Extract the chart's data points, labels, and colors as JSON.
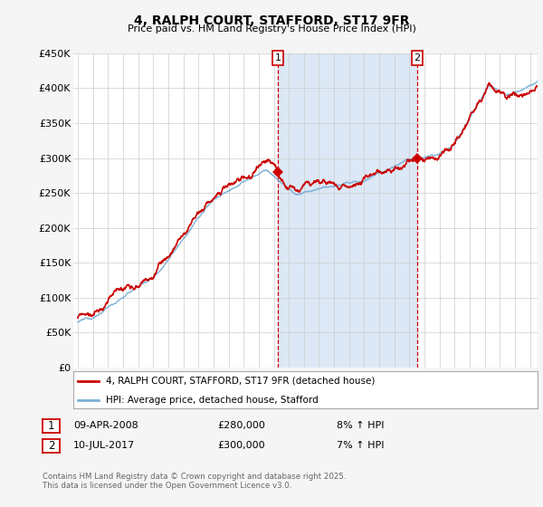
{
  "title": "4, RALPH COURT, STAFFORD, ST17 9FR",
  "subtitle": "Price paid vs. HM Land Registry's House Price Index (HPI)",
  "legend_property": "4, RALPH COURT, STAFFORD, ST17 9FR (detached house)",
  "legend_hpi": "HPI: Average price, detached house, Stafford",
  "annotation1_label": "1",
  "annotation1_date": "09-APR-2008",
  "annotation1_price": "£280,000",
  "annotation1_hpi": "8% ↑ HPI",
  "annotation2_label": "2",
  "annotation2_date": "10-JUL-2017",
  "annotation2_price": "£300,000",
  "annotation2_hpi": "7% ↑ HPI",
  "footer": "Contains HM Land Registry data © Crown copyright and database right 2025.\nThis data is licensed under the Open Government Licence v3.0.",
  "background_color": "#f5f5f5",
  "plot_bg_color": "#ffffff",
  "shaded_region_color": "#dce8f5",
  "property_color": "#cc0000",
  "hpi_color": "#7aafd4",
  "ylim": [
    0,
    450000
  ],
  "yticks": [
    0,
    50000,
    100000,
    150000,
    200000,
    250000,
    300000,
    350000,
    400000,
    450000
  ],
  "ytick_labels": [
    "£0",
    "£50K",
    "£100K",
    "£150K",
    "£200K",
    "£250K",
    "£300K",
    "£350K",
    "£400K",
    "£450K"
  ],
  "sale1_x": 2008.27,
  "sale1_y": 280000,
  "sale2_x": 2017.52,
  "sale2_y": 300000,
  "xmin": 1994.7,
  "xmax": 2025.5,
  "grid_color": "#cccccc",
  "vline_color": "#cc0000"
}
